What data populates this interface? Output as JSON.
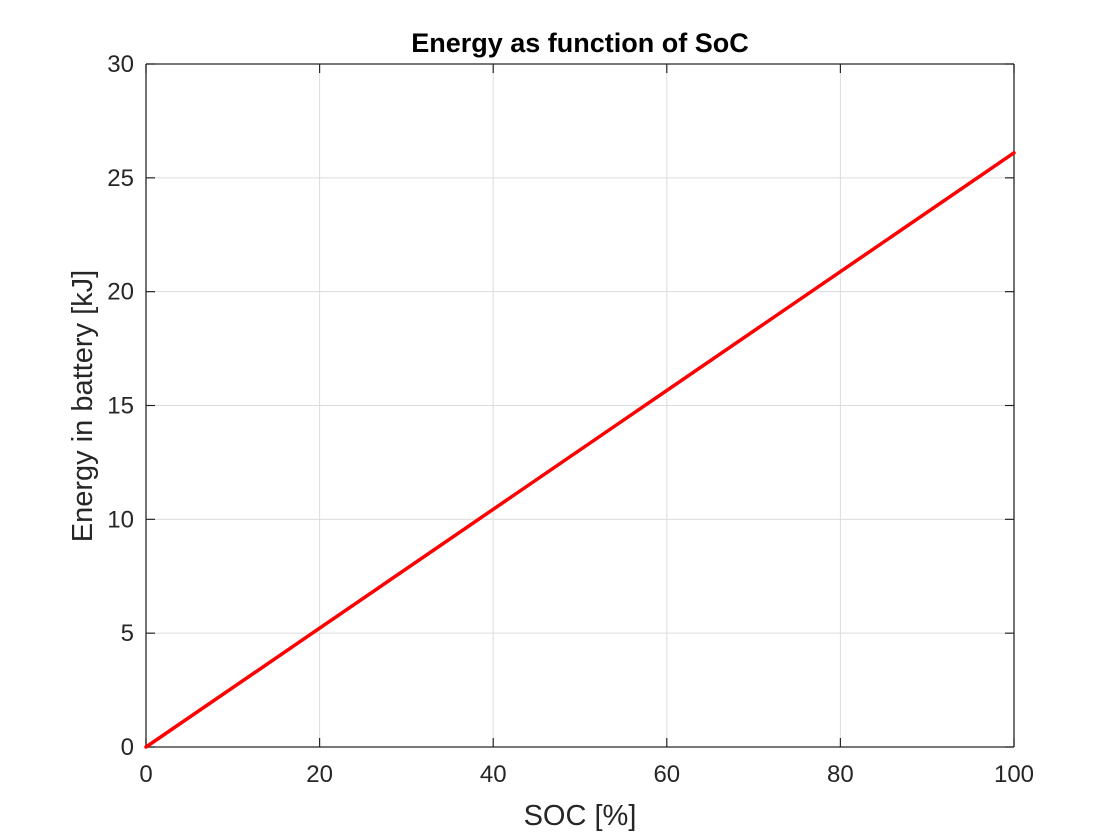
{
  "chart_data": {
    "type": "line",
    "title": "Energy as function of SoC",
    "xlabel": "SOC [%]",
    "ylabel": "Energy in battery [kJ]",
    "xlim": [
      0,
      100
    ],
    "ylim": [
      0,
      30
    ],
    "xticks": [
      0,
      20,
      40,
      60,
      80,
      100
    ],
    "yticks": [
      0,
      5,
      10,
      15,
      20,
      25,
      30
    ],
    "grid": true,
    "series": [
      {
        "color": "#ff0000",
        "x": [
          0,
          100
        ],
        "y": [
          0.0,
          26.1
        ]
      }
    ]
  }
}
